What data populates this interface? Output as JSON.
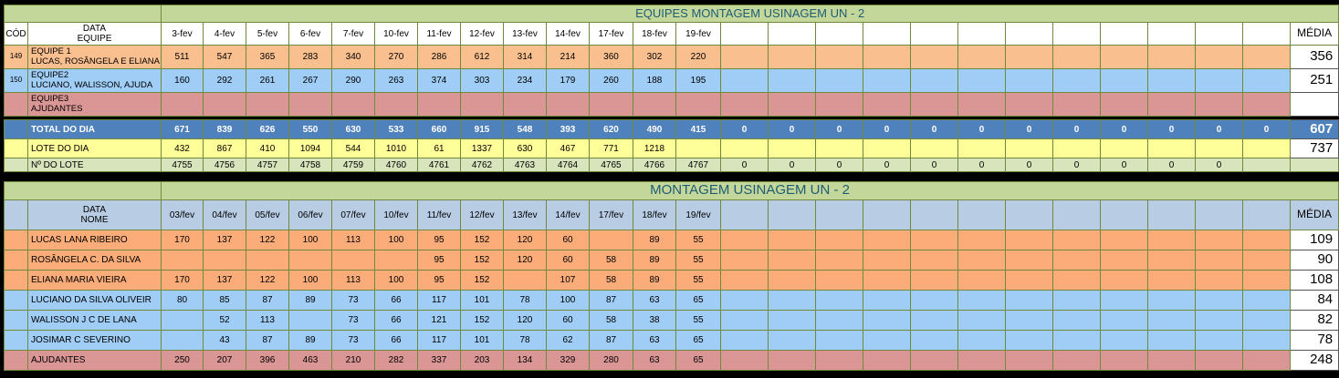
{
  "table1": {
    "title": "EQUIPES MONTAGEM USINAGEM UN - 2",
    "header": {
      "cod": "CÓD",
      "data": "DATA",
      "equipe": "EQUIPE",
      "media": "MÉDIA",
      "dates": [
        "3-fev",
        "4-fev",
        "5-fev",
        "6-fev",
        "7-fev",
        "10-fev",
        "11-fev",
        "12-fev",
        "13-fev",
        "14-fev",
        "17-fev",
        "18-fev",
        "19-fev"
      ]
    },
    "teams": [
      {
        "code": "149",
        "label": "EQUIPE 1",
        "members": "LUCAS, ROSÂNGELA E ELIANA",
        "values": [
          "511",
          "547",
          "365",
          "283",
          "340",
          "270",
          "286",
          "612",
          "314",
          "214",
          "360",
          "302",
          "220"
        ],
        "media": "356"
      },
      {
        "code": "150",
        "label": "EQUIPE2",
        "members": "LUCIANO, WALISSON, AJUDA",
        "values": [
          "160",
          "292",
          "261",
          "267",
          "290",
          "263",
          "374",
          "303",
          "234",
          "179",
          "260",
          "188",
          "195"
        ],
        "media": "251"
      },
      {
        "code": "",
        "label": "EQUIPE3",
        "members": "AJUDANTES",
        "values": [
          "",
          "",
          "",
          "",
          "",
          "",
          "",
          "",
          "",
          "",
          "",
          "",
          ""
        ],
        "media": ""
      }
    ],
    "total": {
      "label": "TOTAL DO DIA",
      "values": [
        "671",
        "839",
        "626",
        "550",
        "630",
        "533",
        "660",
        "915",
        "548",
        "393",
        "620",
        "490",
        "415",
        "0",
        "0",
        "0",
        "0",
        "0",
        "0",
        "0",
        "0",
        "0",
        "0",
        "0",
        "0"
      ],
      "media": "607"
    },
    "lote": {
      "label": "LOTE DO DIA",
      "values": [
        "432",
        "867",
        "410",
        "1094",
        "544",
        "1010",
        "61",
        "1337",
        "630",
        "467",
        "771",
        "1218",
        "",
        "",
        "",
        "",
        "",
        "",
        "",
        "",
        "",
        "",
        "",
        "",
        ""
      ],
      "media": "737"
    },
    "numero": {
      "label": "Nº DO LOTE",
      "values": [
        "4755",
        "4756",
        "4757",
        "4758",
        "4759",
        "4760",
        "4761",
        "4762",
        "4763",
        "4764",
        "4765",
        "4766",
        "4767",
        "0",
        "0",
        "0",
        "0",
        "0",
        "0",
        "0",
        "0",
        "0",
        "0",
        "0",
        ""
      ],
      "media": ""
    }
  },
  "table2": {
    "title": "MONTAGEM USINAGEM UN - 2",
    "header": {
      "data": "DATA",
      "nome": "NOME",
      "media": "MÉDIA",
      "dates": [
        "03/fev",
        "04/fev",
        "05/fev",
        "06/fev",
        "07/fev",
        "10/fev",
        "11/fev",
        "12/fev",
        "13/fev",
        "14/fev",
        "17/fev",
        "18/fev",
        "19/fev"
      ]
    },
    "rows": [
      {
        "name": "LUCAS LANA RIBEIRO",
        "values": [
          "170",
          "137",
          "122",
          "100",
          "113",
          "100",
          "95",
          "152",
          "120",
          "60",
          "",
          "89",
          "55"
        ],
        "media": "109"
      },
      {
        "name": "ROSÂNGELA C. DA SILVA",
        "values": [
          "",
          "",
          "",
          "",
          "",
          "",
          "95",
          "152",
          "120",
          "60",
          "58",
          "89",
          "55"
        ],
        "media": "90"
      },
      {
        "name": "ELIANA MARIA VIEIRA",
        "values": [
          "170",
          "137",
          "122",
          "100",
          "113",
          "100",
          "95",
          "152",
          "",
          "107",
          "58",
          "89",
          "55"
        ],
        "media": "108"
      },
      {
        "name": "LUCIANO DA SILVA OLIVEIR",
        "values": [
          "80",
          "85",
          "87",
          "89",
          "73",
          "66",
          "117",
          "101",
          "78",
          "100",
          "87",
          "63",
          "65"
        ],
        "media": "84"
      },
      {
        "name": "WALISSON J C DE LANA",
        "values": [
          "",
          "52",
          "113",
          "",
          "73",
          "66",
          "121",
          "152",
          "120",
          "60",
          "58",
          "38",
          "55"
        ],
        "media": "82"
      },
      {
        "name": "JOSIMAR C SEVERINO",
        "values": [
          "",
          "43",
          "87",
          "89",
          "73",
          "66",
          "117",
          "101",
          "78",
          "62",
          "87",
          "63",
          "65"
        ],
        "media": "78"
      },
      {
        "name": "AJUDANTES",
        "values": [
          "250",
          "207",
          "396",
          "463",
          "210",
          "282",
          "337",
          "203",
          "134",
          "329",
          "280",
          "63",
          "65"
        ],
        "media": "248"
      }
    ]
  }
}
